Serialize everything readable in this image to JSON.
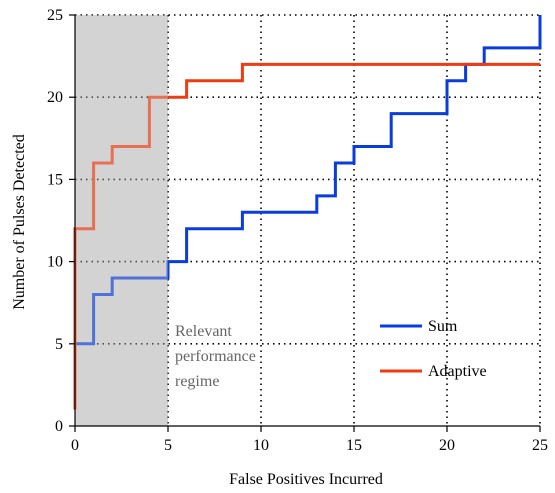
{
  "chart_data": {
    "type": "line",
    "step": true,
    "xlabel": "False Positives Incurred",
    "ylabel": "Number of Pulses Detected",
    "xlim": [
      0,
      25
    ],
    "ylim": [
      0,
      25
    ],
    "x_ticks": [
      0,
      5,
      10,
      15,
      20,
      25
    ],
    "y_ticks": [
      0,
      5,
      10,
      15,
      20,
      25
    ],
    "grid": "dotted",
    "legend_position": "bottom-right",
    "shaded_region": {
      "x": [
        0,
        5
      ],
      "color": "#d3d3d3"
    },
    "annotation_lines": [
      "Relevant",
      "performance",
      "regime"
    ],
    "series": [
      {
        "name": "Sum",
        "color": "#0a3ddb",
        "points": [
          [
            0,
            1
          ],
          [
            0,
            5
          ],
          [
            1,
            5
          ],
          [
            1,
            8
          ],
          [
            2,
            8
          ],
          [
            2,
            9
          ],
          [
            5,
            9
          ],
          [
            5,
            10
          ],
          [
            6,
            10
          ],
          [
            6,
            12
          ],
          [
            9,
            12
          ],
          [
            9,
            13
          ],
          [
            13,
            13
          ],
          [
            13,
            14
          ],
          [
            14,
            14
          ],
          [
            14,
            16
          ],
          [
            15,
            16
          ],
          [
            15,
            17
          ],
          [
            17,
            17
          ],
          [
            17,
            19
          ],
          [
            20,
            19
          ],
          [
            20,
            21
          ],
          [
            21,
            21
          ],
          [
            21,
            22
          ],
          [
            22,
            22
          ],
          [
            22,
            23
          ],
          [
            25,
            23
          ],
          [
            25,
            25
          ]
        ]
      },
      {
        "name": "Adaptive",
        "color": "#f03a10",
        "points": [
          [
            0,
            1
          ],
          [
            0,
            12
          ],
          [
            1,
            12
          ],
          [
            1,
            16
          ],
          [
            2,
            16
          ],
          [
            2,
            17
          ],
          [
            4,
            17
          ],
          [
            4,
            20
          ],
          [
            6,
            20
          ],
          [
            6,
            21
          ],
          [
            9,
            21
          ],
          [
            9,
            22
          ],
          [
            25,
            22
          ]
        ]
      }
    ]
  }
}
